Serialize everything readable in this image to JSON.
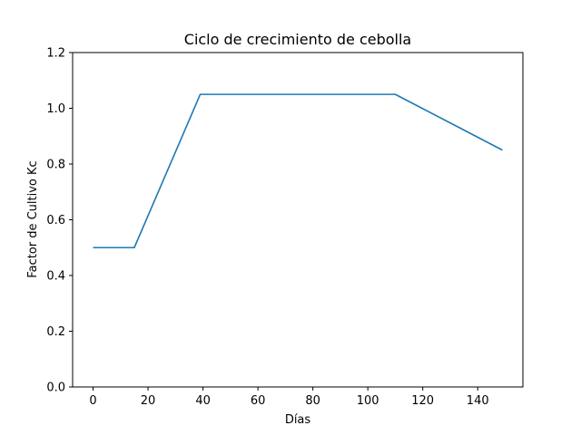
{
  "chart_data": {
    "type": "line",
    "title": "Ciclo de crecimiento de cebolla",
    "xlabel": "Días",
    "ylabel": "Factor de Cultivo Kc",
    "xlim": [
      -7.45,
      156.45
    ],
    "ylim": [
      0,
      1.2
    ],
    "xticks": [
      0,
      20,
      40,
      60,
      80,
      100,
      120,
      140
    ],
    "yticks": [
      0.0,
      0.2,
      0.4,
      0.6,
      0.8,
      1.0,
      1.2
    ],
    "xtick_labels": [
      "0",
      "20",
      "40",
      "60",
      "80",
      "100",
      "120",
      "140"
    ],
    "ytick_labels": [
      "0.0",
      "0.2",
      "0.4",
      "0.6",
      "0.8",
      "1.0",
      "1.2"
    ],
    "grid": false,
    "series": [
      {
        "color": "#1f77b4",
        "x": [
          0,
          15,
          39,
          110,
          149
        ],
        "y": [
          0.5,
          0.5,
          1.05,
          1.05,
          0.85
        ]
      }
    ]
  }
}
